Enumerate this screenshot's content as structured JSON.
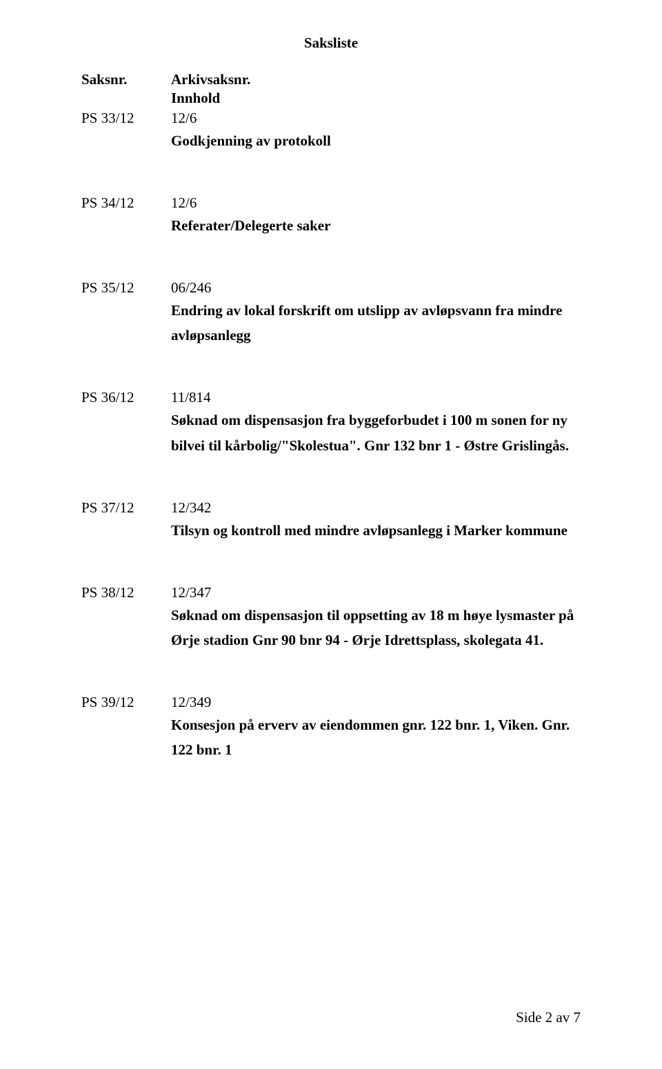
{
  "title": "Saksliste",
  "headers": {
    "saksnr": "Saksnr.",
    "arkivsaksnr": "Arkivsaksnr.",
    "innhold": "Innhold"
  },
  "entries": [
    {
      "saksnr": "PS 33/12",
      "arkiv": "12/6",
      "desc": "Godkjenning av protokoll"
    },
    {
      "saksnr": "PS 34/12",
      "arkiv": "12/6",
      "desc": "Referater/Delegerte saker"
    },
    {
      "saksnr": "PS 35/12",
      "arkiv": "06/246",
      "desc": "Endring av lokal forskrift om utslipp av avløpsvann fra mindre avløpsanlegg"
    },
    {
      "saksnr": "PS 36/12",
      "arkiv": "11/814",
      "desc": "Søknad om dispensasjon fra byggeforbudet i 100 m sonen for ny bilvei til kårbolig/\"Skolestua\". Gnr 132 bnr 1 - Østre Grislingås."
    },
    {
      "saksnr": "PS 37/12",
      "arkiv": "12/342",
      "desc": "Tilsyn og kontroll med mindre avløpsanlegg i Marker kommune"
    },
    {
      "saksnr": "PS 38/12",
      "arkiv": "12/347",
      "desc": "Søknad om dispensasjon til oppsetting av 18 m høye lysmaster på Ørje stadion Gnr 90 bnr 94 - Ørje Idrettsplass, skolegata 41."
    },
    {
      "saksnr": "PS 39/12",
      "arkiv": "12/349",
      "desc": "Konsesjon på erverv av eiendommen gnr. 122 bnr. 1, Viken. Gnr. 122 bnr. 1"
    }
  ],
  "footer": "Side 2 av 7"
}
